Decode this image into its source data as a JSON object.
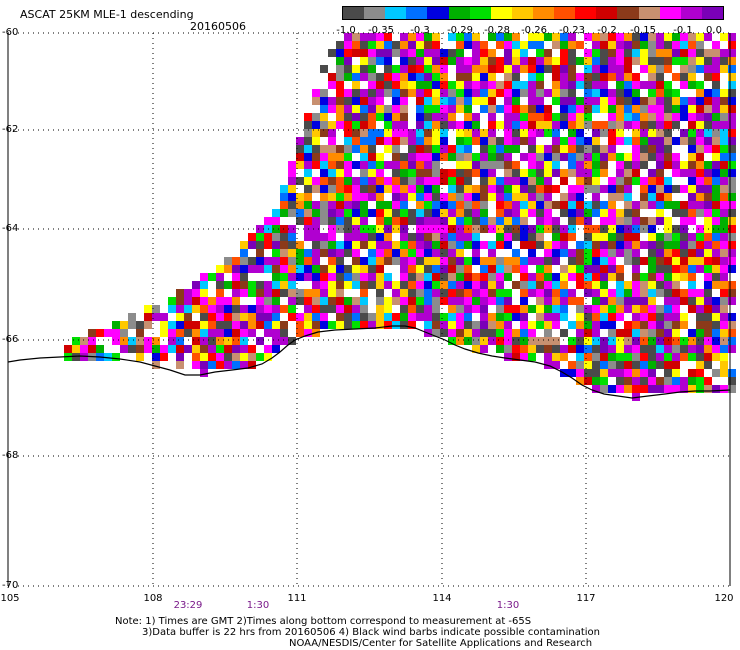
{
  "title": "ASCAT 25KM MLE-1 descending",
  "date": "20160506",
  "colorbar": {
    "colors": [
      "#4a4a4a",
      "#8c8c8c",
      "#00c8ff",
      "#0070ff",
      "#0000e0",
      "#00b000",
      "#00e000",
      "#ffff00",
      "#ffc800",
      "#ff8c00",
      "#ff5000",
      "#ff0000",
      "#d00000",
      "#8b3a1a",
      "#c89070",
      "#ff00ff",
      "#b000d0",
      "#7a00b8"
    ],
    "labels": [
      "-1.0",
      "-0.35",
      "-0.3",
      "-0.29",
      "-0.28",
      "-0.26",
      "-0.23",
      "-0.2",
      "-0.15",
      "-0.1",
      "0.0"
    ]
  },
  "axes": {
    "lat_labels": [
      "-60",
      "-62",
      "-64",
      "-66",
      "-68",
      "-70"
    ],
    "lon_labels": [
      "105",
      "108",
      "111",
      "114",
      "117",
      "120"
    ]
  },
  "times": [
    "23:29",
    "1:30",
    "1:30"
  ],
  "notes": [
    "Note: 1) Times are GMT 2)Times along bottom correspond to measurement at -65S",
    "3)Data buffer is 22 hrs from 20160506 4) Black wind barbs indicate possible contamination",
    "NOAA/NESDIS/Center for Satellite Applications and Research"
  ]
}
